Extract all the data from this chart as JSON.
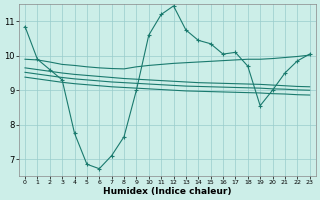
{
  "xlabel": "Humidex (Indice chaleur)",
  "bg_color": "#cceee8",
  "line_color": "#1a7a6e",
  "grid_color": "#99cccc",
  "xlim": [
    -0.5,
    23.5
  ],
  "ylim": [
    6.5,
    11.5
  ],
  "xticks": [
    0,
    1,
    2,
    3,
    4,
    5,
    6,
    7,
    8,
    9,
    10,
    11,
    12,
    13,
    14,
    15,
    16,
    17,
    18,
    19,
    20,
    21,
    22,
    23
  ],
  "yticks": [
    7,
    8,
    9,
    10,
    11
  ],
  "curve_main": {
    "x": [
      0,
      1,
      2,
      3,
      4,
      5,
      6,
      7,
      8,
      9,
      10,
      11,
      12,
      13,
      14,
      15,
      16,
      17,
      18,
      19,
      20,
      21,
      22,
      23
    ],
    "y": [
      10.85,
      9.9,
      9.6,
      9.3,
      7.75,
      6.85,
      6.72,
      7.1,
      7.65,
      9.0,
      10.6,
      11.2,
      11.45,
      10.75,
      10.45,
      10.35,
      10.05,
      10.1,
      9.7,
      8.55,
      9.0,
      9.5,
      9.85,
      10.05
    ]
  },
  "curve_upper": {
    "x": [
      0,
      1,
      2,
      3,
      4,
      5,
      6,
      7,
      8,
      9,
      10,
      11,
      12,
      13,
      14,
      15,
      16,
      17,
      18,
      19,
      20,
      21,
      22,
      23
    ],
    "y": [
      9.9,
      9.88,
      9.82,
      9.75,
      9.72,
      9.68,
      9.65,
      9.63,
      9.62,
      9.68,
      9.72,
      9.75,
      9.78,
      9.8,
      9.82,
      9.84,
      9.86,
      9.88,
      9.9,
      9.9,
      9.92,
      9.95,
      9.98,
      10.02
    ]
  },
  "curve_mid1": {
    "x": [
      0,
      1,
      2,
      3,
      4,
      5,
      6,
      7,
      8,
      9,
      10,
      11,
      12,
      13,
      14,
      15,
      16,
      17,
      18,
      19,
      20,
      21,
      22,
      23
    ],
    "y": [
      9.65,
      9.6,
      9.55,
      9.5,
      9.46,
      9.43,
      9.4,
      9.37,
      9.34,
      9.32,
      9.3,
      9.28,
      9.26,
      9.24,
      9.22,
      9.21,
      9.2,
      9.19,
      9.18,
      9.17,
      9.15,
      9.13,
      9.11,
      9.1
    ]
  },
  "curve_mid2": {
    "x": [
      0,
      1,
      2,
      3,
      4,
      5,
      6,
      7,
      8,
      9,
      10,
      11,
      12,
      13,
      14,
      15,
      16,
      17,
      18,
      19,
      20,
      21,
      22,
      23
    ],
    "y": [
      9.52,
      9.47,
      9.42,
      9.37,
      9.33,
      9.3,
      9.27,
      9.24,
      9.22,
      9.2,
      9.18,
      9.16,
      9.14,
      9.12,
      9.11,
      9.1,
      9.09,
      9.08,
      9.07,
      9.06,
      9.04,
      9.03,
      9.01,
      9.0
    ]
  },
  "curve_lower": {
    "x": [
      0,
      1,
      2,
      3,
      4,
      5,
      6,
      7,
      8,
      9,
      10,
      11,
      12,
      13,
      14,
      15,
      16,
      17,
      18,
      19,
      20,
      21,
      22,
      23
    ],
    "y": [
      9.38,
      9.33,
      9.28,
      9.23,
      9.19,
      9.16,
      9.13,
      9.1,
      9.08,
      9.06,
      9.04,
      9.02,
      9.0,
      8.98,
      8.97,
      8.96,
      8.95,
      8.94,
      8.93,
      8.92,
      8.9,
      8.89,
      8.87,
      8.86
    ]
  }
}
